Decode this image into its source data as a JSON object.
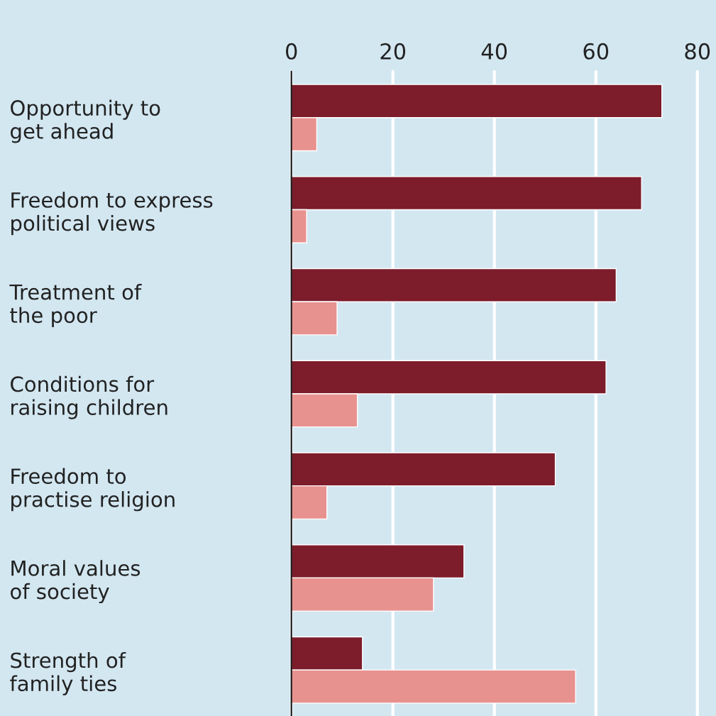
{
  "chart_data": {
    "type": "bar",
    "orientation": "horizontal",
    "categories": [
      "Opportunity to\nget ahead",
      "Freedom to express\npolitical views",
      "Treatment of\nthe poor",
      "Conditions for\nraising children",
      "Freedom to\npractise religion",
      "Moral values\nof society",
      "Strength of\nfamily ties"
    ],
    "series": [
      {
        "color": "#7d1c2b",
        "values": [
          73,
          69,
          64,
          62,
          52,
          34,
          14
        ]
      },
      {
        "color": "#e8928f",
        "values": [
          5,
          3,
          9,
          13,
          7,
          28,
          56
        ]
      }
    ],
    "xlim": [
      0,
      80
    ],
    "xticks": [
      0,
      20,
      40,
      60,
      80
    ],
    "grid": "x"
  }
}
